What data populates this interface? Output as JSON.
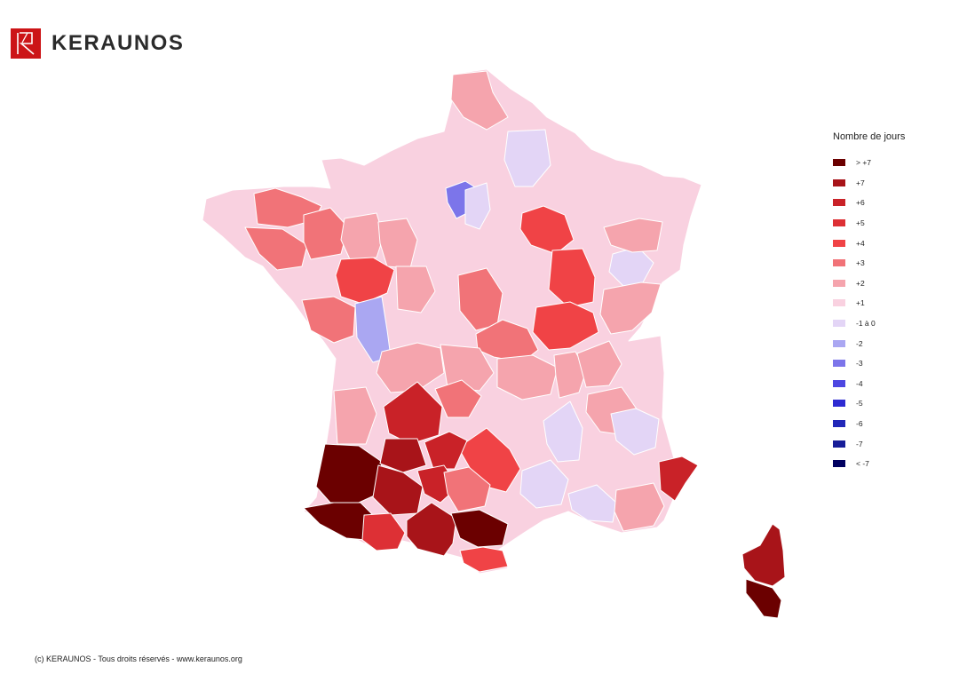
{
  "brand": {
    "name": "KERAUNOS",
    "accent": "#cc1417"
  },
  "legend": {
    "title": "Nombre de jours",
    "items": [
      {
        "label": "> +7",
        "color": "#6b0000"
      },
      {
        "label": "+7",
        "color": "#a81419"
      },
      {
        "label": "+6",
        "color": "#c92228"
      },
      {
        "label": "+5",
        "color": "#dd3035"
      },
      {
        "label": "+4",
        "color": "#f04346"
      },
      {
        "label": "+3",
        "color": "#f17378"
      },
      {
        "label": "+2",
        "color": "#f5a4ad"
      },
      {
        "label": "+1",
        "color": "#f9d1e0"
      },
      {
        "label": "-1 à 0",
        "color": "#e3d5f6"
      },
      {
        "label": "-2",
        "color": "#aaa7f2"
      },
      {
        "label": "-3",
        "color": "#7c75ea"
      },
      {
        "label": "-4",
        "color": "#4d47e1"
      },
      {
        "label": "-5",
        "color": "#2e2bd2"
      },
      {
        "label": "-6",
        "color": "#2127b8"
      },
      {
        "label": "-7",
        "color": "#171d98"
      },
      {
        "label": "< -7",
        "color": "#000060"
      }
    ]
  },
  "footer": {
    "text": "(c) KERAUNOS - Tous droits réservés - www.keraunos.org"
  }
}
